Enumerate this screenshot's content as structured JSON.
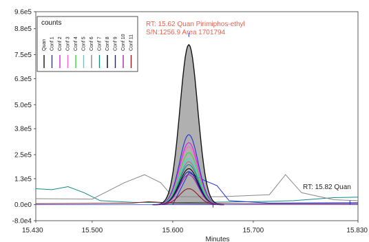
{
  "chart_data": {
    "type": "line",
    "xlabel": "Minutes",
    "ylabel": "",
    "xlim": [
      15.43,
      15.83
    ],
    "ylim": [
      -80000,
      965000
    ],
    "x_ticks": [
      15.43,
      15.5,
      15.6,
      15.7,
      15.83
    ],
    "x_tick_labels": [
      "15.430",
      "15.500",
      "15.600",
      "15.700",
      "15.830"
    ],
    "y_ticks": [
      -80000,
      0,
      130000,
      250000,
      380000,
      500000,
      630000,
      750000,
      880000,
      965000
    ],
    "y_tick_labels": [
      "-8.0e4",
      "0.0e0",
      "1.3e5",
      "2.5e5",
      "3.8e5",
      "5.0e5",
      "6.3e5",
      "7.5e5",
      "8.8e5",
      "9.6e5"
    ],
    "legend_title": "counts",
    "legend_placement": "top-left",
    "annotations": [
      {
        "text": "RT: 15.62 Quan Pirimiphos-ethyl",
        "x": 15.62,
        "y": 880000,
        "color": "#e8624f"
      },
      {
        "text": "S/N:1256.9 Area 1701794",
        "x": 15.62,
        "y": 845000,
        "color": "#e8624f"
      },
      {
        "text": "RT: 15.82 Quan",
        "x": 15.82,
        "y": 90000,
        "color": "#222222"
      }
    ],
    "peaks": [
      {
        "name": "Quan",
        "color": "#111111",
        "apex_x": 15.62,
        "height": 800000,
        "fill": "#b0b0b0"
      },
      {
        "name": "Conf 1",
        "color": "#1f2fd6",
        "apex_x": 15.62,
        "height": 350000
      },
      {
        "name": "Conf 2",
        "color": "#e020e0",
        "apex_x": 15.62,
        "height": 310000
      },
      {
        "name": "Conf 3",
        "color": "#ff66cc",
        "apex_x": 15.62,
        "height": 290000
      },
      {
        "name": "Conf 4",
        "color": "#33dd33",
        "apex_x": 15.62,
        "height": 260000
      },
      {
        "name": "Conf 5",
        "color": "#33dddd",
        "apex_x": 15.62,
        "height": 230000
      },
      {
        "name": "Conf 6",
        "color": "#888888",
        "apex_x": 15.62,
        "height": 215000
      },
      {
        "name": "Conf 7",
        "color": "#108888",
        "apex_x": 15.62,
        "height": 200000
      },
      {
        "name": "Conf 8",
        "color": "#000000",
        "apex_x": 15.62,
        "height": 180000
      },
      {
        "name": "Conf 9",
        "color": "#1a1aa8",
        "apex_x": 15.62,
        "height": 165000
      },
      {
        "name": "Conf 10",
        "color": "#aa22aa",
        "apex_x": 15.62,
        "height": 150000
      },
      {
        "name": "Conf 11",
        "color": "#8b1a1a",
        "apex_x": 15.62,
        "height": 80000
      }
    ],
    "baseline_traces": [
      {
        "series": "Conf 7",
        "color": "#108888",
        "points": [
          [
            15.43,
            80000
          ],
          [
            15.45,
            75000
          ],
          [
            15.47,
            90000
          ],
          [
            15.49,
            60000
          ],
          [
            15.51,
            20000
          ],
          [
            15.55,
            12000
          ],
          [
            15.6,
            10000
          ],
          [
            15.7,
            15000
          ],
          [
            15.75,
            20000
          ],
          [
            15.8,
            35000
          ],
          [
            15.83,
            38000
          ]
        ]
      },
      {
        "series": "Conf 6",
        "color": "#888888",
        "points": [
          [
            15.43,
            30000
          ],
          [
            15.5,
            28000
          ],
          [
            15.54,
            110000
          ],
          [
            15.565,
            150000
          ],
          [
            15.585,
            110000
          ],
          [
            15.6,
            40000
          ],
          [
            15.66,
            40000
          ],
          [
            15.72,
            50000
          ],
          [
            15.74,
            150000
          ],
          [
            15.76,
            60000
          ],
          [
            15.8,
            25000
          ],
          [
            15.83,
            20000
          ]
        ]
      },
      {
        "series": "Conf 1",
        "color": "#1f2fd6",
        "points": [
          [
            15.6,
            0
          ],
          [
            15.62,
            160000
          ],
          [
            15.64,
            120000
          ],
          [
            15.655,
            95000
          ],
          [
            15.67,
            20000
          ],
          [
            15.72,
            8000
          ],
          [
            15.83,
            10000
          ]
        ]
      },
      {
        "series": "Conf 11",
        "color": "#8b1a1a",
        "points": [
          [
            15.43,
            5000
          ],
          [
            15.55,
            8000
          ],
          [
            15.57,
            15000
          ],
          [
            15.6,
            8000
          ],
          [
            15.7,
            5000
          ],
          [
            15.83,
            5000
          ]
        ]
      }
    ]
  }
}
